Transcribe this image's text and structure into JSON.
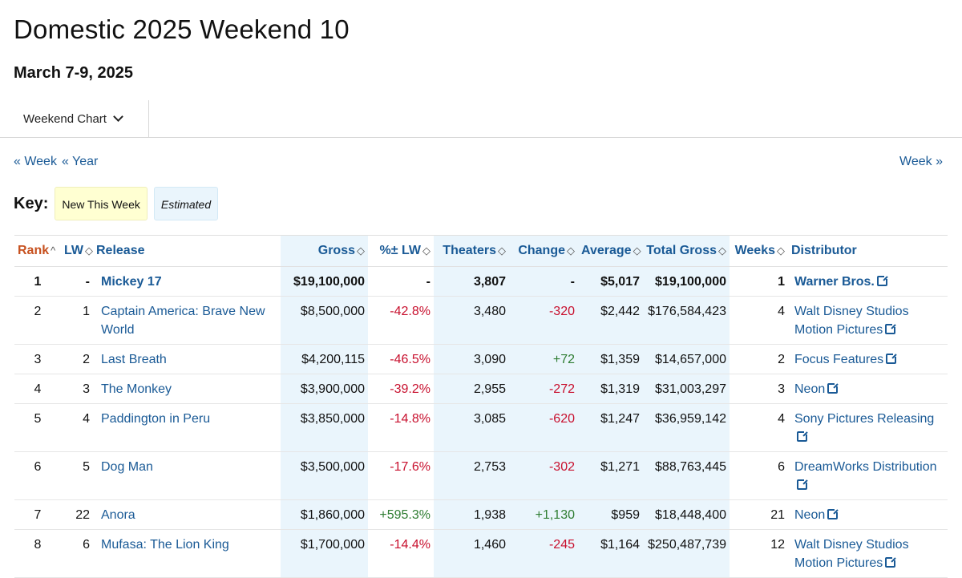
{
  "page": {
    "title": "Domestic 2025 Weekend 10",
    "subtitle": "March 7-9, 2025",
    "dropdown_label": "Weekend Chart",
    "nav_prev_week": "« Week",
    "nav_prev_year": "« Year",
    "nav_next_week": "Week »"
  },
  "key": {
    "label": "Key:",
    "new": "New This Week",
    "estimated": "Estimated"
  },
  "table": {
    "headers": {
      "rank": "Rank",
      "lw": "LW",
      "release": "Release",
      "gross": "Gross",
      "pct_lw": "%± LW",
      "theaters": "Theaters",
      "change": "Change",
      "average": "Average",
      "total_gross": "Total Gross",
      "weeks": "Weeks",
      "distributor": "Distributor"
    },
    "rows": [
      {
        "rank": "1",
        "lw": "-",
        "release": "Mickey 17",
        "gross": "$19,100,000",
        "pct": "-",
        "theaters": "3,807",
        "change": "-",
        "average": "$5,017",
        "total": "$19,100,000",
        "weeks": "1",
        "distributor": "Warner Bros."
      },
      {
        "rank": "2",
        "lw": "1",
        "release": "Captain America: Brave New World",
        "gross": "$8,500,000",
        "pct": "-42.8%",
        "theaters": "3,480",
        "change": "-320",
        "average": "$2,442",
        "total": "$176,584,423",
        "weeks": "4",
        "distributor": "Walt Disney Studios Motion Pictures"
      },
      {
        "rank": "3",
        "lw": "2",
        "release": "Last Breath",
        "gross": "$4,200,115",
        "pct": "-46.5%",
        "theaters": "3,090",
        "change": "+72",
        "average": "$1,359",
        "total": "$14,657,000",
        "weeks": "2",
        "distributor": "Focus Features"
      },
      {
        "rank": "4",
        "lw": "3",
        "release": "The Monkey",
        "gross": "$3,900,000",
        "pct": "-39.2%",
        "theaters": "2,955",
        "change": "-272",
        "average": "$1,319",
        "total": "$31,003,297",
        "weeks": "3",
        "distributor": "Neon"
      },
      {
        "rank": "5",
        "lw": "4",
        "release": "Paddington in Peru",
        "gross": "$3,850,000",
        "pct": "-14.8%",
        "theaters": "3,085",
        "change": "-620",
        "average": "$1,247",
        "total": "$36,959,142",
        "weeks": "4",
        "distributor": "Sony Pictures Releasing"
      },
      {
        "rank": "6",
        "lw": "5",
        "release": "Dog Man",
        "gross": "$3,500,000",
        "pct": "-17.6%",
        "theaters": "2,753",
        "change": "-302",
        "average": "$1,271",
        "total": "$88,763,445",
        "weeks": "6",
        "distributor": "DreamWorks Distribution"
      },
      {
        "rank": "7",
        "lw": "22",
        "release": "Anora",
        "gross": "$1,860,000",
        "pct": "+595.3%",
        "theaters": "1,938",
        "change": "+1,130",
        "average": "$959",
        "total": "$18,448,400",
        "weeks": "21",
        "distributor": "Neon"
      },
      {
        "rank": "8",
        "lw": "6",
        "release": "Mufasa: The Lion King",
        "gross": "$1,700,000",
        "pct": "-14.4%",
        "theaters": "1,460",
        "change": "-245",
        "average": "$1,164",
        "total": "$250,487,739",
        "weeks": "12",
        "distributor": "Walt Disney Studios Motion Pictures"
      }
    ]
  },
  "colors": {
    "link": "#1a5a96",
    "rank_header": "#c7511f",
    "negative": "#c8102e",
    "positive": "#2f7d32",
    "highlight_column": "#eaf5fc",
    "key_new_bg": "#ffffd2"
  },
  "icons": {
    "external_link": "external-link-icon",
    "dropdown": "chevron-down-icon",
    "sort": "sort-icon"
  }
}
